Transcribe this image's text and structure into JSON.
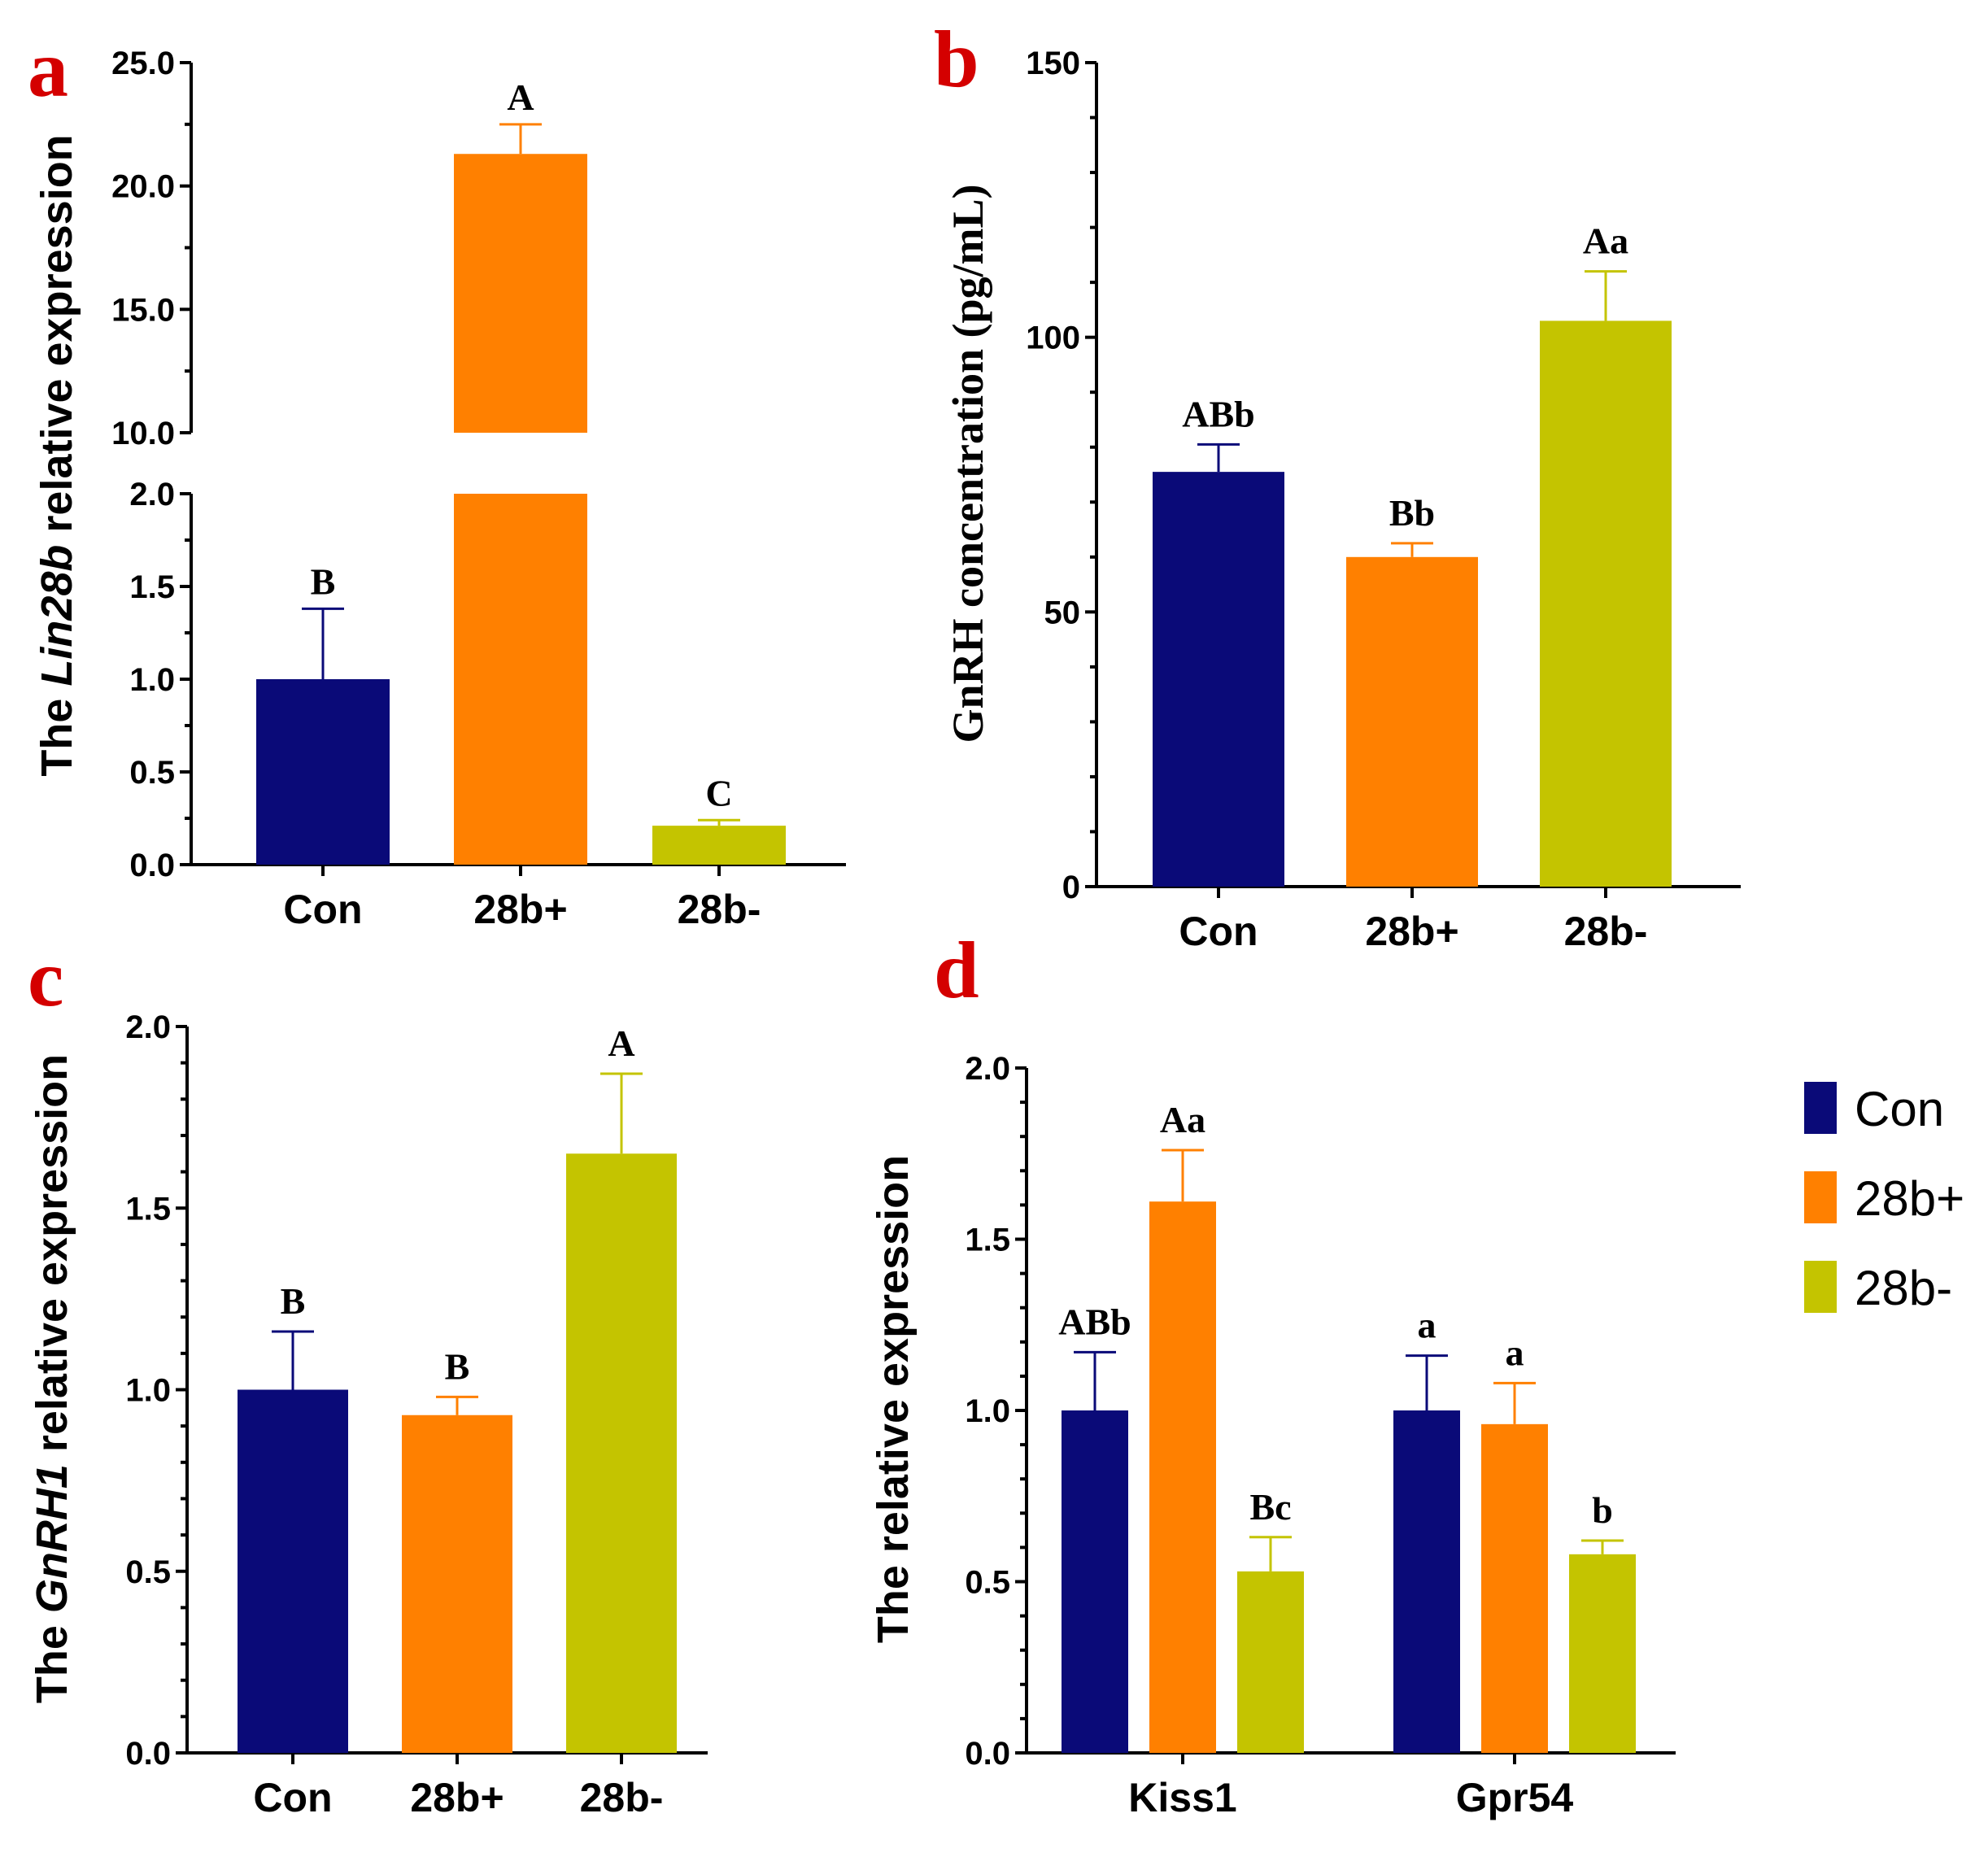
{
  "colors": {
    "Con": "#0a0a78",
    "28b+": "#ff8000",
    "28b-": "#c4c400"
  },
  "chart_data": [
    {
      "panel": "a",
      "type": "bar",
      "ylabel_parts": [
        "The ",
        "Lin28b",
        " relative expression"
      ],
      "broken_axis": true,
      "lower_range": [
        0,
        2.0
      ],
      "upper_range": [
        10.0,
        25.0
      ],
      "lower_ticks": [
        "0.0",
        "0.5",
        "1.0",
        "1.5",
        "2.0"
      ],
      "upper_ticks": [
        "10.0",
        "15.0",
        "20.0",
        "25.0"
      ],
      "categories": [
        "Con",
        "28b+",
        "28b-"
      ],
      "values": [
        1.0,
        21.3,
        0.21
      ],
      "errors": [
        0.38,
        1.2,
        0.03
      ],
      "sig": [
        "B",
        "A",
        "C"
      ]
    },
    {
      "panel": "b",
      "type": "bar",
      "ylabel": "GnRH concentration (pg/mL)",
      "ylim": [
        0,
        150
      ],
      "ticks": [
        "0",
        "50",
        "100",
        "150"
      ],
      "categories": [
        "Con",
        "28b+",
        "28b-"
      ],
      "values": [
        75.5,
        60,
        103
      ],
      "errors": [
        5,
        2.5,
        9
      ],
      "sig": [
        "ABb",
        "Bb",
        "Aa"
      ]
    },
    {
      "panel": "c",
      "type": "bar",
      "ylabel_parts": [
        "The ",
        "GnRH1",
        " relative expression"
      ],
      "ylim": [
        0,
        2.0
      ],
      "ticks": [
        "0.0",
        "0.5",
        "1.0",
        "1.5",
        "2.0"
      ],
      "categories": [
        "Con",
        "28b+",
        "28b-"
      ],
      "values": [
        1.0,
        0.93,
        1.65
      ],
      "errors": [
        0.16,
        0.05,
        0.22
      ],
      "sig": [
        "B",
        "B",
        "A"
      ]
    },
    {
      "panel": "d",
      "type": "bar",
      "ylabel": "The relative expression",
      "ylim": [
        0,
        2.0
      ],
      "ticks": [
        "0.0",
        "0.5",
        "1.0",
        "1.5",
        "2.0"
      ],
      "categories": [
        "Kiss1",
        "Gpr54"
      ],
      "series": [
        {
          "name": "Con",
          "values": [
            1.0,
            1.0
          ],
          "errors": [
            0.17,
            0.16
          ],
          "sig": [
            "ABb",
            "a"
          ]
        },
        {
          "name": "28b+",
          "values": [
            1.61,
            0.96
          ],
          "errors": [
            0.15,
            0.12
          ],
          "sig": [
            "Aa",
            "a"
          ]
        },
        {
          "name": "28b-",
          "values": [
            0.53,
            0.58
          ],
          "errors": [
            0.1,
            0.04
          ],
          "sig": [
            "Bc",
            "b"
          ]
        }
      ],
      "legend": [
        "Con",
        "28b+",
        "28b-"
      ]
    }
  ]
}
